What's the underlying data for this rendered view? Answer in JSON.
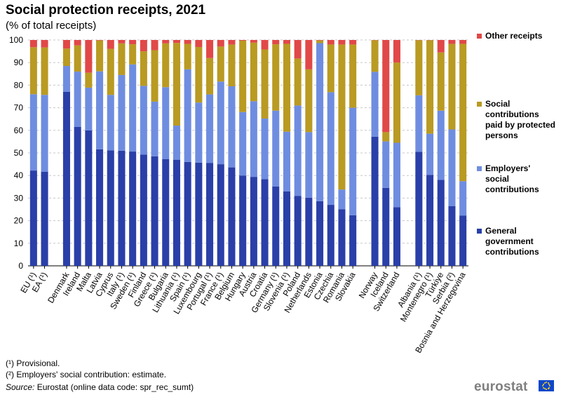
{
  "header": {
    "title": "Social protection receipts, 2021",
    "subtitle": "(% of total receipts)"
  },
  "colors": {
    "general_government": "#2a3fa8",
    "employers": "#6f8de0",
    "protected_persons": "#b99a22",
    "other": "#e14848",
    "gridline": "#c8c8c8"
  },
  "legend": [
    {
      "label": "Other receipts",
      "color": "#e14848"
    },
    {
      "label": "Social contributions paid by protected persons",
      "color": "#b99a22"
    },
    {
      "label": "Employers' social contributions",
      "color": "#6f8de0"
    },
    {
      "label": "General government contributions",
      "color": "#2a3fa8"
    }
  ],
  "footnotes": {
    "note1": "(¹) Provisional.",
    "note2": "(²) Employers' social contribution: estimate.",
    "source_label": "Source:",
    "source_text": "Eurostat (online data code: spr_rec_sumt)"
  },
  "logo": {
    "text": "eurostat"
  },
  "chart_data": {
    "type": "bar",
    "stacked": true,
    "title": "Social protection receipts, 2021",
    "ylabel": "% of total receipts",
    "ylim": [
      0,
      100
    ],
    "yticks": [
      0,
      10,
      20,
      30,
      40,
      50,
      60,
      70,
      80,
      90,
      100
    ],
    "grid": true,
    "legend_position": "right",
    "categories": [
      "EU (¹)",
      "EA (¹)",
      "",
      "Denmark",
      "Ireland",
      "Malta",
      "Latvia",
      "Cyprus",
      "Italy (¹)",
      "Sweden (¹)",
      "Finland",
      "Greece (¹)",
      "Bulgaria",
      "Lithuania (¹)",
      "Spain (¹)",
      "Luxembourg",
      "Portugal (¹)",
      "France (¹)",
      "Belgium",
      "Hungary",
      "Austria",
      "Croatia",
      "Germany (¹)",
      "Slovenia (¹)",
      "Poland",
      "Netherlands",
      "Estonia",
      "Czechia",
      "Romania",
      "Slovakia",
      "",
      "Norway",
      "Iceland",
      "Switzerland",
      "",
      "Albania (¹)",
      "Montenegro (¹)",
      "Türkiye",
      "Serbia (²)",
      "Bosnia and Herzegovina"
    ],
    "series": [
      {
        "name": "General government contributions",
        "values": [
          42.2,
          41.7,
          null,
          77.1,
          61.5,
          60.0,
          51.6,
          51.1,
          51.0,
          50.6,
          49.3,
          48.5,
          47.3,
          47.0,
          46.0,
          45.7,
          45.6,
          45.0,
          43.6,
          40.0,
          39.4,
          38.4,
          35.1,
          33.0,
          31.0,
          30.2,
          28.6,
          27.0,
          25.0,
          22.4,
          null,
          57.2,
          34.5,
          26.0,
          null,
          50.5,
          40.3,
          38.1,
          26.4,
          22.3
        ]
      },
      {
        "name": "Employers' social contributions",
        "values": [
          33.8,
          34.0,
          null,
          11.4,
          24.5,
          18.9,
          34.5,
          24.6,
          33.5,
          38.6,
          30.4,
          24.2,
          31.8,
          15.1,
          41.0,
          26.6,
          30.3,
          36.6,
          35.9,
          28.1,
          33.5,
          26.8,
          33.6,
          26.4,
          40.0,
          29.0,
          70.0,
          49.9,
          8.8,
          47.6,
          null,
          28.7,
          20.6,
          28.5,
          null,
          25.0,
          18.2,
          30.6,
          34.0,
          15.2
        ]
      },
      {
        "name": "Social contributions paid by protected persons",
        "values": [
          20.8,
          21.0,
          null,
          7.7,
          11.6,
          6.6,
          13.7,
          20.4,
          14.0,
          8.9,
          15.3,
          22.8,
          19.4,
          36.6,
          11.3,
          24.6,
          16.1,
          15.5,
          18.5,
          31.6,
          25.9,
          30.6,
          29.4,
          38.9,
          20.8,
          27.8,
          1.2,
          21.1,
          64.2,
          28.0,
          null,
          14.0,
          4.1,
          35.5,
          null,
          24.4,
          41.4,
          25.8,
          37.9,
          60.8
        ]
      },
      {
        "name": "Other receipts",
        "values": [
          3.2,
          3.3,
          null,
          3.8,
          2.4,
          14.5,
          0.2,
          3.9,
          1.5,
          1.9,
          5.0,
          4.5,
          1.5,
          1.3,
          1.7,
          3.1,
          8.0,
          2.9,
          2.0,
          0.3,
          1.2,
          4.2,
          1.9,
          1.7,
          8.2,
          13.0,
          0.2,
          2.0,
          2.0,
          2.0,
          null,
          0.1,
          40.8,
          10.0,
          null,
          0.1,
          0.1,
          5.5,
          1.7,
          1.7
        ]
      }
    ]
  }
}
